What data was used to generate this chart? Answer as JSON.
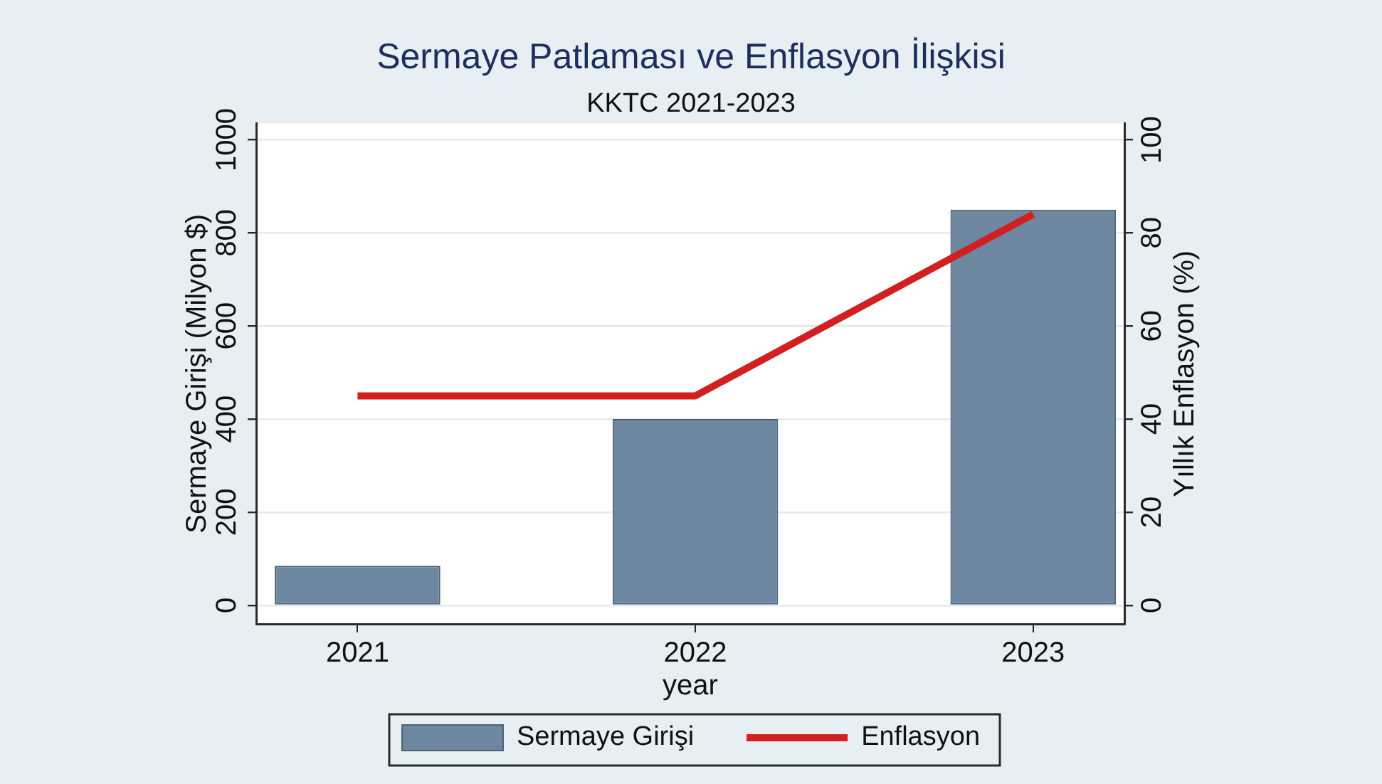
{
  "chart_data": {
    "type": "bar",
    "title": "Sermaye Patlaması ve Enflasyon İlişkisi",
    "subtitle": "KKTC 2021-2023",
    "xlabel": "year",
    "ylabel": "Sermaye Girişi (Milyon $)",
    "y2label": "Yıllık Enflasyon (%)",
    "x": [
      2021,
      2022,
      2023
    ],
    "series": [
      {
        "name": "Sermaye Girişi",
        "color": "#6d87a1",
        "values": [
          85,
          400,
          850
        ]
      },
      {
        "name": "Enflasyon",
        "type": "line",
        "axis": "y2",
        "color": "#d21f1f",
        "values": [
          45,
          45,
          84
        ]
      }
    ],
    "xlim": [
      2020.7,
      2023.27
    ],
    "xticks": [
      2021,
      2022,
      2023
    ],
    "ylim": [
      -40,
      1035
    ],
    "yticks": [
      0,
      200,
      400,
      600,
      800,
      1000
    ],
    "y2lim": [
      -4,
      103.5
    ],
    "y2ticks": [
      0,
      20,
      40,
      60,
      80,
      100
    ],
    "grid": "y",
    "legend": "bottom",
    "marker": "none",
    "line_style": "solid"
  }
}
